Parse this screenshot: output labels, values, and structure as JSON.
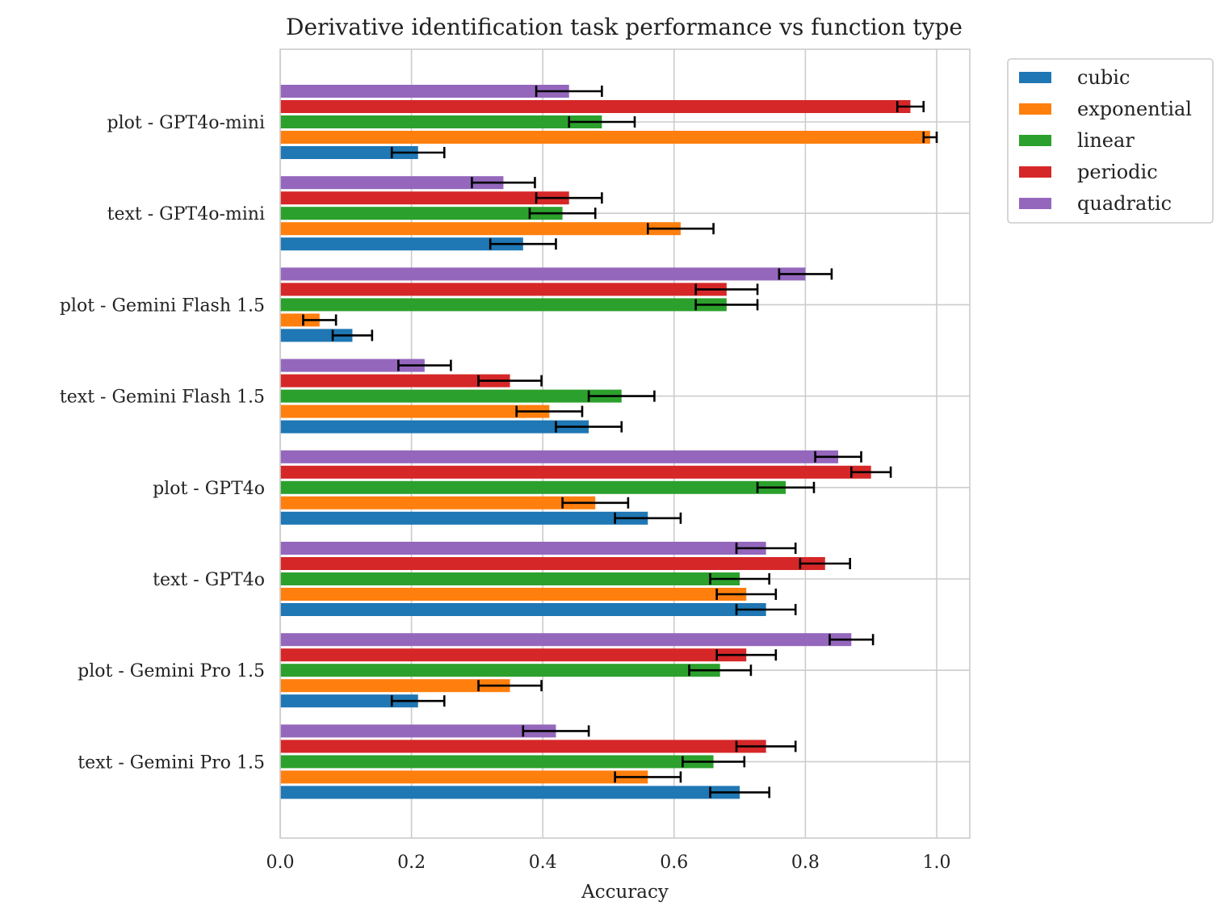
{
  "chart_data": {
    "type": "bar",
    "orientation": "horizontal",
    "title": "Derivative identification task performance vs function type",
    "xlabel": "Accuracy",
    "ylabel": "",
    "xlim": [
      0.0,
      1.05
    ],
    "xticks": [
      "0.0",
      "0.2",
      "0.4",
      "0.6",
      "0.8",
      "1.0"
    ],
    "grid": true,
    "legend_position": "outside-top-right",
    "categories": [
      "plot - GPT4o-mini",
      "text - GPT4o-mini",
      "plot - Gemini Flash 1.5",
      "text - Gemini Flash 1.5",
      "plot - GPT4o",
      "text - GPT4o",
      "plot - Gemini Pro 1.5",
      "text - Gemini Pro 1.5"
    ],
    "series": [
      {
        "name": "cubic",
        "color": "#1f77b4",
        "values": [
          0.21,
          0.37,
          0.11,
          0.47,
          0.56,
          0.74,
          0.21,
          0.7
        ],
        "errors": [
          0.04,
          0.05,
          0.03,
          0.05,
          0.05,
          0.045,
          0.04,
          0.045
        ]
      },
      {
        "name": "exponential",
        "color": "#ff7f0e",
        "values": [
          0.99,
          0.61,
          0.06,
          0.41,
          0.48,
          0.71,
          0.35,
          0.56
        ],
        "errors": [
          0.01,
          0.05,
          0.025,
          0.05,
          0.05,
          0.045,
          0.048,
          0.05
        ]
      },
      {
        "name": "linear",
        "color": "#2ca02c",
        "values": [
          0.49,
          0.43,
          0.68,
          0.52,
          0.77,
          0.7,
          0.67,
          0.66
        ],
        "errors": [
          0.05,
          0.05,
          0.047,
          0.05,
          0.043,
          0.045,
          0.047,
          0.047
        ]
      },
      {
        "name": "periodic",
        "color": "#d62728",
        "values": [
          0.96,
          0.44,
          0.68,
          0.35,
          0.9,
          0.83,
          0.71,
          0.74
        ],
        "errors": [
          0.02,
          0.05,
          0.047,
          0.048,
          0.03,
          0.038,
          0.045,
          0.045
        ]
      },
      {
        "name": "quadratic",
        "color": "#9467bd",
        "values": [
          0.44,
          0.34,
          0.8,
          0.22,
          0.85,
          0.74,
          0.87,
          0.42
        ],
        "errors": [
          0.05,
          0.048,
          0.04,
          0.04,
          0.035,
          0.045,
          0.033,
          0.05
        ]
      }
    ]
  }
}
